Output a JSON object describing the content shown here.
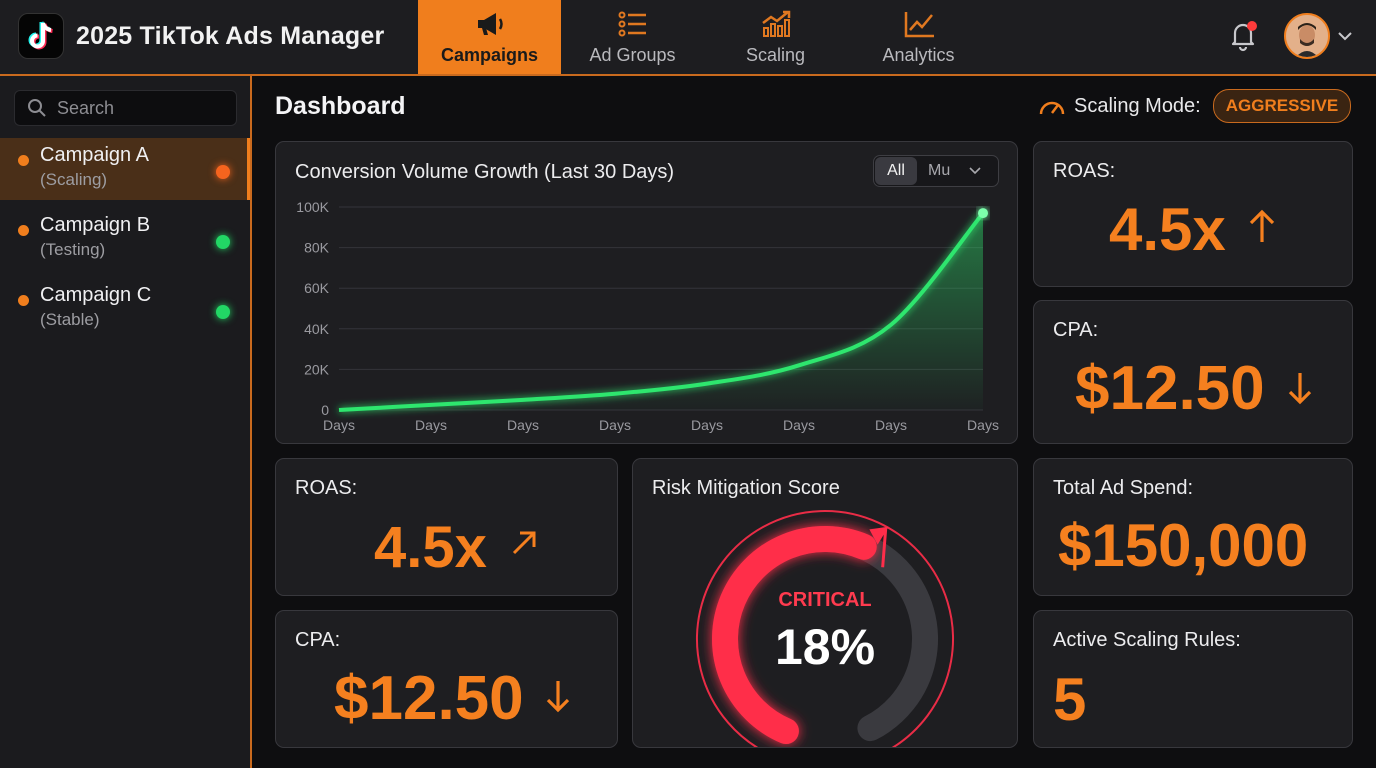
{
  "app": {
    "title": "2025 TikTok Ads Manager"
  },
  "nav": {
    "tabs": [
      {
        "label": "Campaigns",
        "icon": "megaphone-icon",
        "active": true
      },
      {
        "label": "Ad Groups",
        "icon": "list-icon",
        "active": false
      },
      {
        "label": "Scaling",
        "icon": "growth-chart-icon",
        "active": false
      },
      {
        "label": "Analytics",
        "icon": "line-chart-icon",
        "active": false
      }
    ]
  },
  "header": {
    "notification_badge": "unread",
    "accent": "#f07e1d"
  },
  "sidebar": {
    "search_placeholder": "Search",
    "campaigns": [
      {
        "name": "Campaign A",
        "status": "(Scaling)",
        "status_color": "#f5641e",
        "active": true
      },
      {
        "name": "Campaign B",
        "status": "(Testing)",
        "status_color": "#22d765",
        "active": false
      },
      {
        "name": "Campaign C",
        "status": "(Stable)",
        "status_color": "#22d765",
        "active": false
      }
    ]
  },
  "dashboard": {
    "title": "Dashboard",
    "scaling_mode_label": "Scaling Mode:",
    "scaling_mode_value": "AGGRESSIVE"
  },
  "chart_data": {
    "type": "area",
    "title": "Conversion Volume Growth (Last 30 Days)",
    "filter": {
      "selected": "All",
      "other": "Mu"
    },
    "x": [
      "Days",
      "Days",
      "Days",
      "Days",
      "Days",
      "Days",
      "Days",
      "Days"
    ],
    "y_ticks": [
      "0",
      "20K",
      "40K",
      "60K",
      "80K",
      "100K"
    ],
    "ylim": [
      0,
      100000
    ],
    "series": [
      {
        "name": "Conversions",
        "color": "#2ee66e",
        "values": [
          0,
          2500,
          5000,
          8000,
          13000,
          22000,
          42000,
          97000
        ]
      }
    ]
  },
  "metrics": {
    "roas_top": {
      "label": "ROAS:",
      "value": "4.5x",
      "trend": "up"
    },
    "cpa_top": {
      "label": "CPA:",
      "value": "$12.50",
      "trend": "down"
    },
    "roas_bottom": {
      "label": "ROAS:",
      "value": "4.5x",
      "trend": "up-right"
    },
    "cpa_bottom": {
      "label": "CPA:",
      "value": "$12.50",
      "trend": "down"
    },
    "total_spend": {
      "label": "Total Ad Spend:",
      "value": "$150,000"
    },
    "active_rules": {
      "label": "Active Scaling Rules:",
      "value": "5"
    }
  },
  "risk": {
    "title": "Risk Mitigation Score",
    "status": "CRITICAL",
    "value_text": "18%",
    "gauge_fraction": 0.18,
    "color": "#ff2d4a"
  }
}
